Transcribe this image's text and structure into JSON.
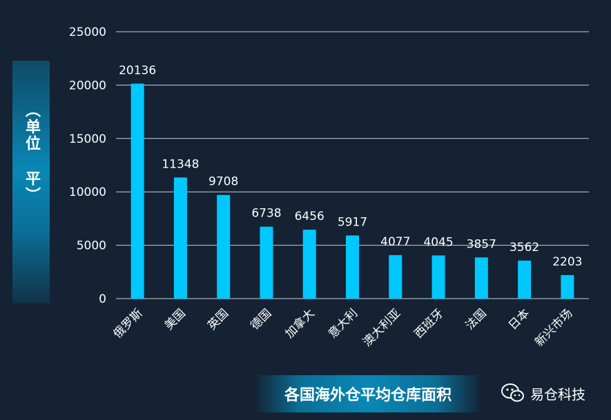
{
  "chart_data": {
    "type": "bar",
    "categories": [
      "俄罗斯",
      "美国",
      "英国",
      "德国",
      "加拿大",
      "意大利",
      "澳大利亚",
      "西班牙",
      "法国",
      "日本",
      "新兴市场"
    ],
    "values": [
      20136,
      11348,
      9708,
      6738,
      6456,
      5917,
      4077,
      4045,
      3857,
      3562,
      2203
    ],
    "title": "各国海外仓平均仓库面积",
    "ylabel": "（单位 平）",
    "ylim": [
      0,
      25000
    ],
    "yticks": [
      0,
      5000,
      10000,
      15000,
      20000,
      25000
    ],
    "grid": true,
    "bar_color": "#00c8ff",
    "text_color": "#ffffff",
    "grid_color": "#c8d0d8"
  },
  "brand": {
    "name": "易仓科技",
    "icon": "wechat-icon"
  },
  "colors": {
    "background": "#142234",
    "accent": "#0a87b5"
  }
}
